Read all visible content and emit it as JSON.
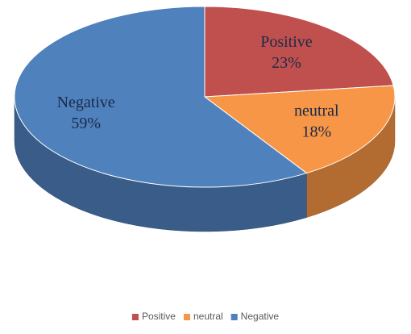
{
  "chart_data": {
    "type": "pie",
    "categories": [
      "Positive",
      "neutral",
      "Negative"
    ],
    "values": [
      23,
      18,
      59
    ],
    "value_labels": [
      "23%",
      "18%",
      "59%"
    ],
    "colors": [
      "#c0504d",
      "#f79646",
      "#4f81bd"
    ],
    "legend": "bottom"
  }
}
